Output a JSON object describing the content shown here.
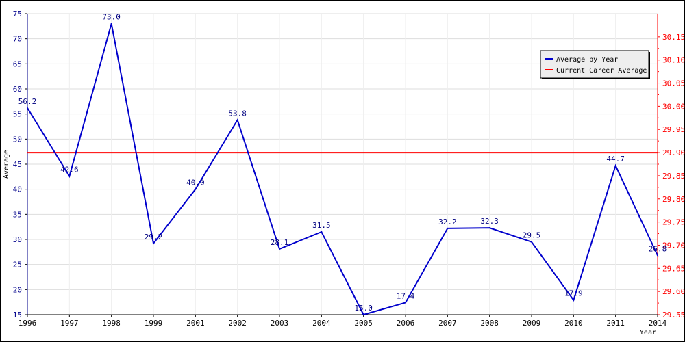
{
  "chart_data": {
    "type": "line",
    "title": "",
    "xlabel": "Year",
    "ylabel": "Average",
    "categories": [
      "1996",
      "1997",
      "1998",
      "1999",
      "2001",
      "2002",
      "2003",
      "2004",
      "2005",
      "2006",
      "2007",
      "2008",
      "2009",
      "2010",
      "2011",
      "2014"
    ],
    "series": [
      {
        "name": "Average by Year",
        "color": "#0000cc",
        "axis": "left",
        "values": [
          56.2,
          42.6,
          73.0,
          29.2,
          40.0,
          53.8,
          28.1,
          31.5,
          15.0,
          17.4,
          32.2,
          32.3,
          29.5,
          17.9,
          44.7,
          26.8
        ],
        "labels": [
          "56.2",
          "42.6",
          "73.0",
          "29.2",
          "40.0",
          "53.8",
          "28.1",
          "31.5",
          "15.0",
          "17.4",
          "32.2",
          "32.3",
          "29.5",
          "17.9",
          "44.7",
          "26.8"
        ]
      },
      {
        "name": "Current Career Average",
        "color": "#ff0000",
        "axis": "right",
        "value": 29.9
      }
    ],
    "y_left": {
      "ylim": [
        15,
        75
      ],
      "ticks": [
        15,
        20,
        25,
        30,
        35,
        40,
        45,
        50,
        55,
        60,
        65,
        70,
        75
      ],
      "tick_labels": [
        "15",
        "20",
        "25",
        "30",
        "35",
        "40",
        "45",
        "50",
        "55",
        "60",
        "65",
        "70",
        "75"
      ],
      "color": "#00008b"
    },
    "y_right": {
      "ylim": [
        29.55,
        30.2
      ],
      "ticks": [
        29.55,
        29.6,
        29.65,
        29.7,
        29.75,
        29.8,
        29.85,
        29.9,
        29.95,
        30.0,
        30.05,
        30.1,
        30.15
      ],
      "tick_labels": [
        "29.55",
        "29.60",
        "29.65",
        "29.70",
        "29.75",
        "29.80",
        "29.85",
        "29.90",
        "29.95",
        "30.00",
        "30.05",
        "30.10",
        "30.15"
      ],
      "color": "#ff0000"
    },
    "grid": true,
    "legend": {
      "placement": "top-right"
    }
  }
}
